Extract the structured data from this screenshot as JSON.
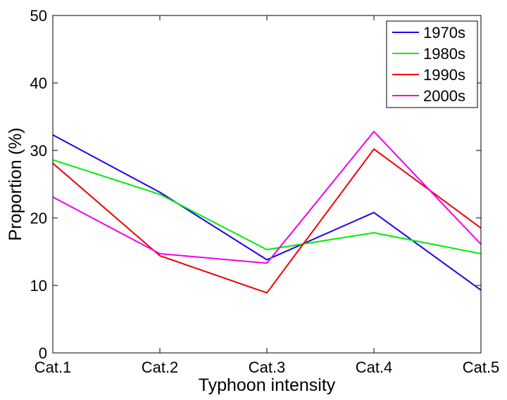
{
  "chart_data": {
    "type": "line",
    "title": "",
    "xlabel": "Typhoon intensity",
    "ylabel": "Proportion (%)",
    "categories": [
      "Cat.1",
      "Cat.2",
      "Cat.3",
      "Cat.4",
      "Cat.5"
    ],
    "ylim": [
      0,
      50
    ],
    "yticks": [
      0,
      10,
      20,
      30,
      40,
      50
    ],
    "grid": false,
    "legend_position": "top-right",
    "series": [
      {
        "name": "1970s",
        "color": "#2200ee",
        "values": [
          32.3,
          23.8,
          13.8,
          20.8,
          9.3
        ]
      },
      {
        "name": "1980s",
        "color": "#00ee00",
        "values": [
          28.6,
          23.5,
          15.3,
          17.8,
          14.7
        ]
      },
      {
        "name": "1990s",
        "color": "#ee0000",
        "values": [
          28.1,
          14.4,
          8.9,
          30.2,
          18.5
        ]
      },
      {
        "name": "2000s",
        "color": "#ee00ee",
        "values": [
          23.1,
          14.7,
          13.3,
          32.8,
          16.1
        ]
      }
    ]
  }
}
